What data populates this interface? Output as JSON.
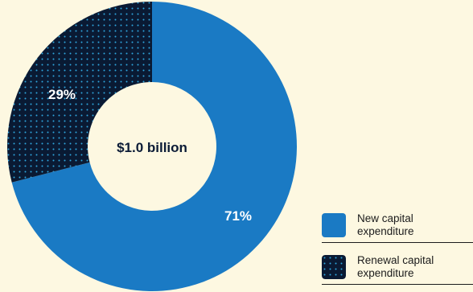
{
  "chart_data": {
    "type": "pie",
    "center_label": "$1.0 billion",
    "slices": [
      {
        "name": "New capital expenditure",
        "value": 71,
        "label": "71%",
        "color": "#1a7ac4",
        "pattern": "solid"
      },
      {
        "name": "Renewal capital expenditure",
        "value": 29,
        "label": "29%",
        "color": "#0a1a33",
        "pattern": "dotted",
        "dot_color": "#2ea7e0"
      }
    ]
  },
  "legend": {
    "items": [
      {
        "label": "New capital expenditure",
        "line1": "New capital",
        "line2": "expenditure"
      },
      {
        "label": "Renewal capital expenditure",
        "line1": "Renewal capital",
        "line2": "expenditure"
      }
    ],
    "placement": "bottom-right"
  }
}
